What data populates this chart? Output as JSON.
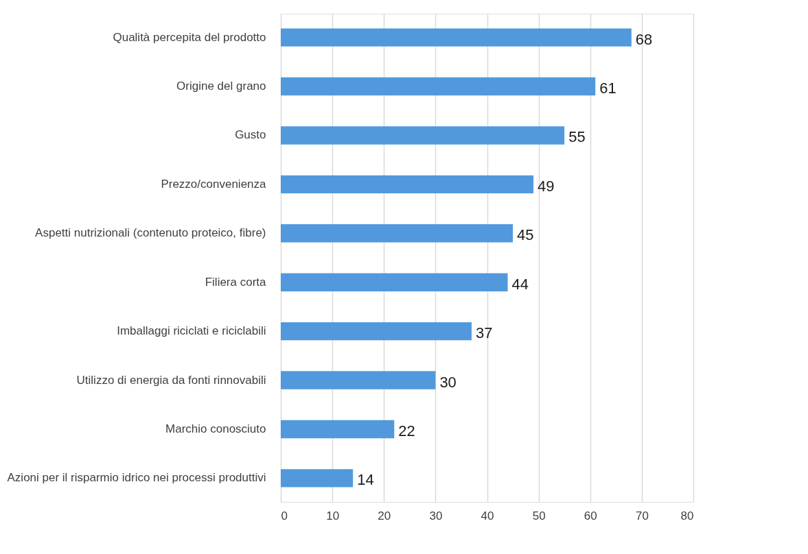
{
  "chart_data": {
    "type": "bar",
    "orientation": "horizontal",
    "categories": [
      "Qualità percepita del prodotto",
      "Origine del grano",
      "Gusto",
      "Prezzo/convenienza",
      "Aspetti nutrizionali (contenuto proteico, fibre)",
      "Filiera corta",
      "Imballaggi riciclati e riciclabili",
      "Utilizzo di energia da fonti rinnovabili",
      "Marchio conosciuto",
      "Azioni per il risparmio idrico nei processi produttivi"
    ],
    "values": [
      68,
      61,
      55,
      49,
      45,
      44,
      37,
      30,
      22,
      14
    ],
    "color": "#5199dc",
    "xlim": [
      0,
      80
    ],
    "xticks": [
      0,
      10,
      20,
      30,
      40,
      50,
      60,
      70,
      80
    ],
    "grid": "x",
    "data_labels": true
  }
}
